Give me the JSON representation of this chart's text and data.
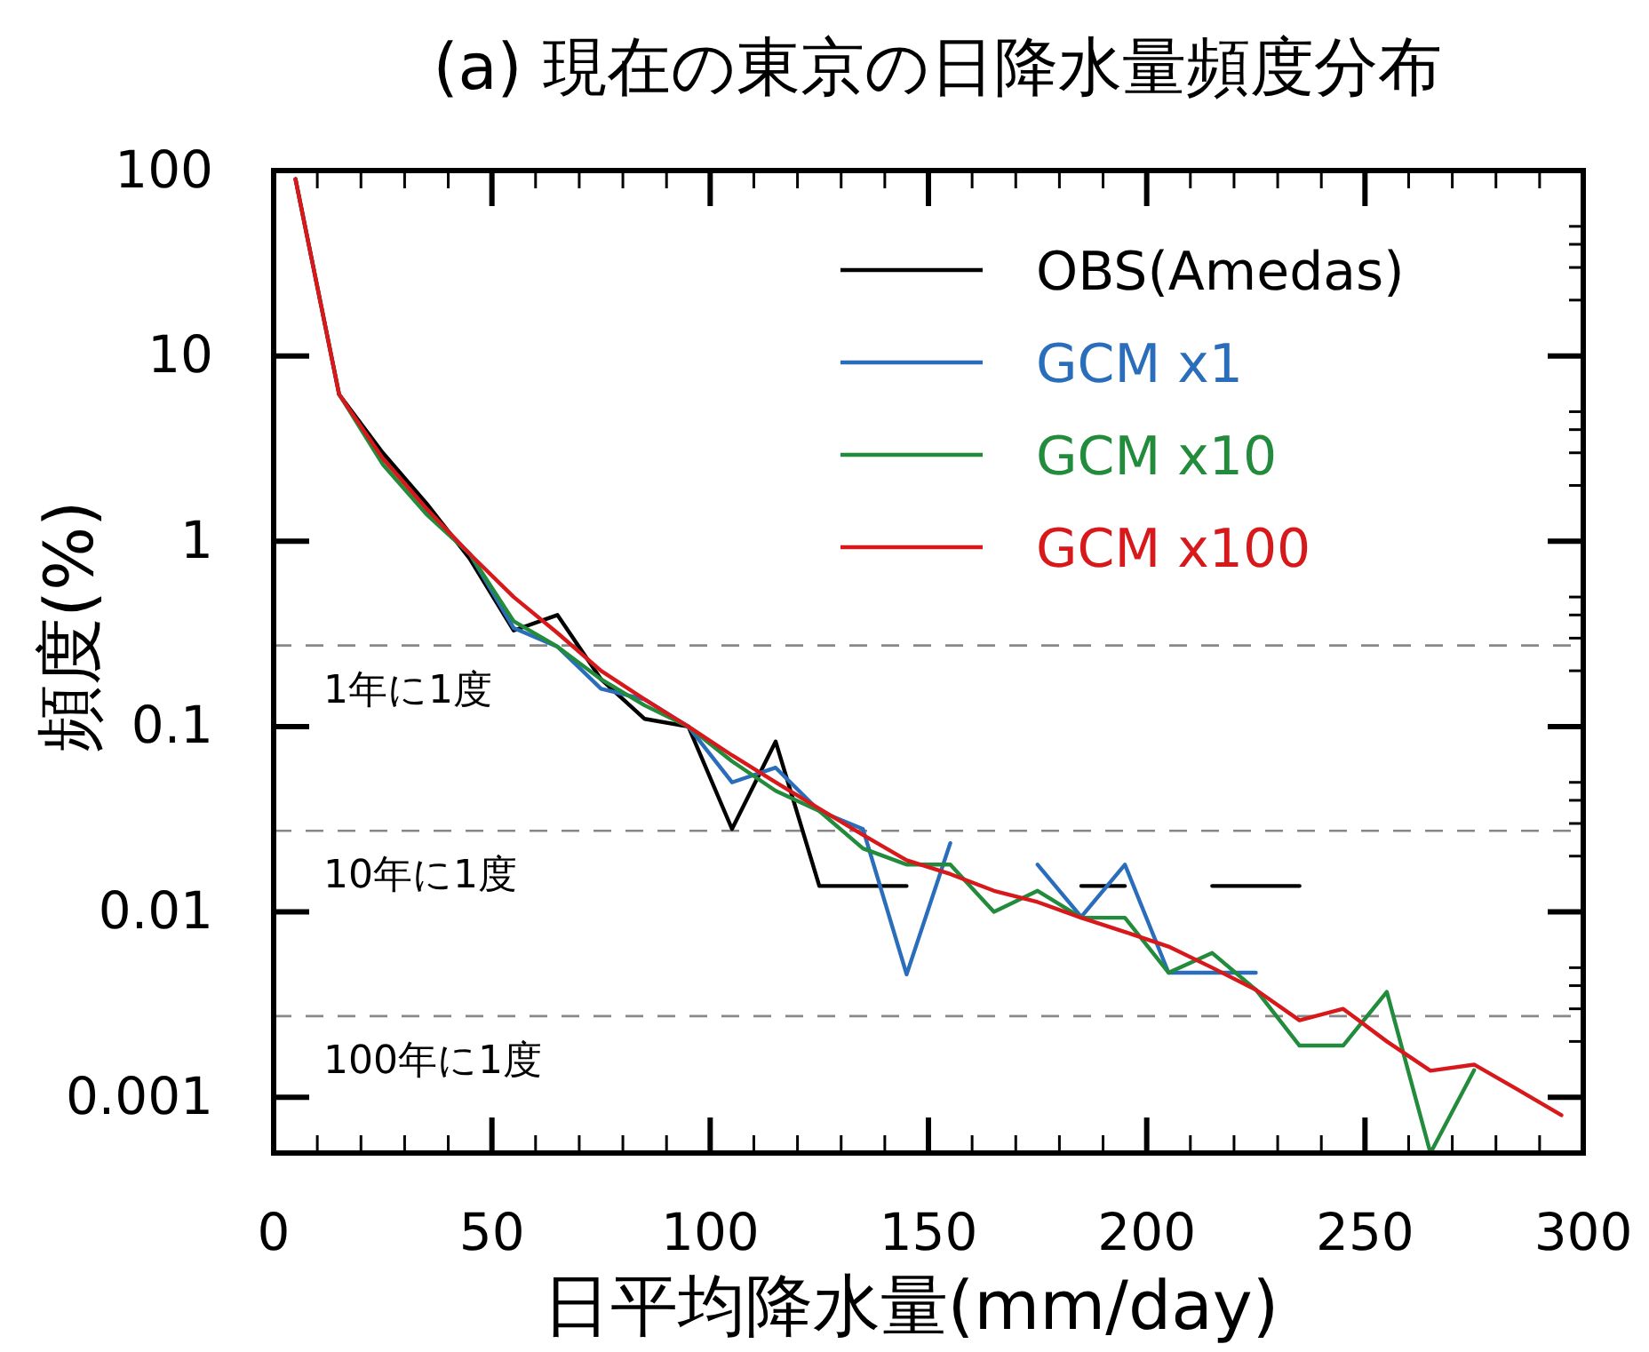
{
  "chart_data": {
    "type": "line",
    "title": "(a) 現在の東京の日降水量頻度分布",
    "xlabel": "日平均降水量(mm/day)",
    "ylabel": "頻度(%)",
    "x": [
      5,
      15,
      25,
      35,
      45,
      55,
      65,
      75,
      85,
      95,
      105,
      115,
      125,
      135,
      145,
      155,
      165,
      175,
      185,
      195,
      205,
      215,
      225,
      235,
      245,
      255,
      265,
      275,
      285,
      295
    ],
    "series": [
      {
        "name": "OBS(Amedas)",
        "color": "#000000",
        "values": [
          90,
          6.2,
          3.0,
          1.6,
          0.8,
          0.33,
          0.4,
          0.18,
          0.11,
          0.1,
          0.028,
          0.083,
          0.0138,
          0.0138,
          0.0138,
          null,
          null,
          null,
          0.0138,
          0.0138,
          null,
          0.0138,
          0.0138,
          0.0138,
          null,
          null,
          null,
          null,
          null,
          null
        ]
      },
      {
        "name": "GCM x1",
        "color": "#2a6ebb",
        "values": [
          null,
          null,
          null,
          1.45,
          0.85,
          0.34,
          0.27,
          0.16,
          0.14,
          0.1,
          0.05,
          0.06,
          0.035,
          0.028,
          0.0046,
          0.0235,
          null,
          0.018,
          0.0094,
          0.018,
          0.0047,
          0.0047,
          0.0047,
          null,
          null,
          null,
          null,
          null,
          null,
          null
        ]
      },
      {
        "name": "GCM x10",
        "color": "#228b3c",
        "values": [
          null,
          6.2,
          2.6,
          1.4,
          0.85,
          0.37,
          0.27,
          0.18,
          0.13,
          0.1,
          0.065,
          0.045,
          0.035,
          0.022,
          0.018,
          0.018,
          0.01,
          0.013,
          0.0093,
          0.0093,
          0.0047,
          0.006,
          0.0038,
          0.0019,
          0.0019,
          0.0037,
          0.0005,
          0.0014,
          null,
          null
        ]
      },
      {
        "name": "GCM x100",
        "color": "#d7191c",
        "values": [
          90,
          6.2,
          2.8,
          1.5,
          0.85,
          0.5,
          0.32,
          0.2,
          0.14,
          0.1,
          0.07,
          0.05,
          0.036,
          0.026,
          0.019,
          0.016,
          0.013,
          0.0113,
          0.0093,
          0.0078,
          0.0065,
          0.005,
          0.0038,
          0.0026,
          0.003,
          0.002,
          0.00139,
          0.0015,
          0.0011,
          0.0008
        ]
      }
    ],
    "xlim": [
      0,
      300
    ],
    "xticks": [
      0,
      50,
      100,
      150,
      200,
      250,
      300
    ],
    "ylim": [
      0.0005,
      100
    ],
    "yticks": [
      0.001,
      0.01,
      0.1,
      1,
      10,
      100
    ],
    "log": "y",
    "ref_lines": [
      {
        "axis": "y",
        "value": 0.274,
        "label": "1年に1度",
        "color": "#888888",
        "line_style": "dashed"
      },
      {
        "axis": "y",
        "value": 0.0274,
        "label": "10年に1度",
        "color": "#888888",
        "line_style": "dashed"
      },
      {
        "axis": "y",
        "value": 0.00274,
        "label": "100年に1度",
        "color": "#888888",
        "line_style": "dashed"
      }
    ],
    "legend": "top right",
    "line_style": "solid",
    "marker": "none",
    "grid": false
  }
}
